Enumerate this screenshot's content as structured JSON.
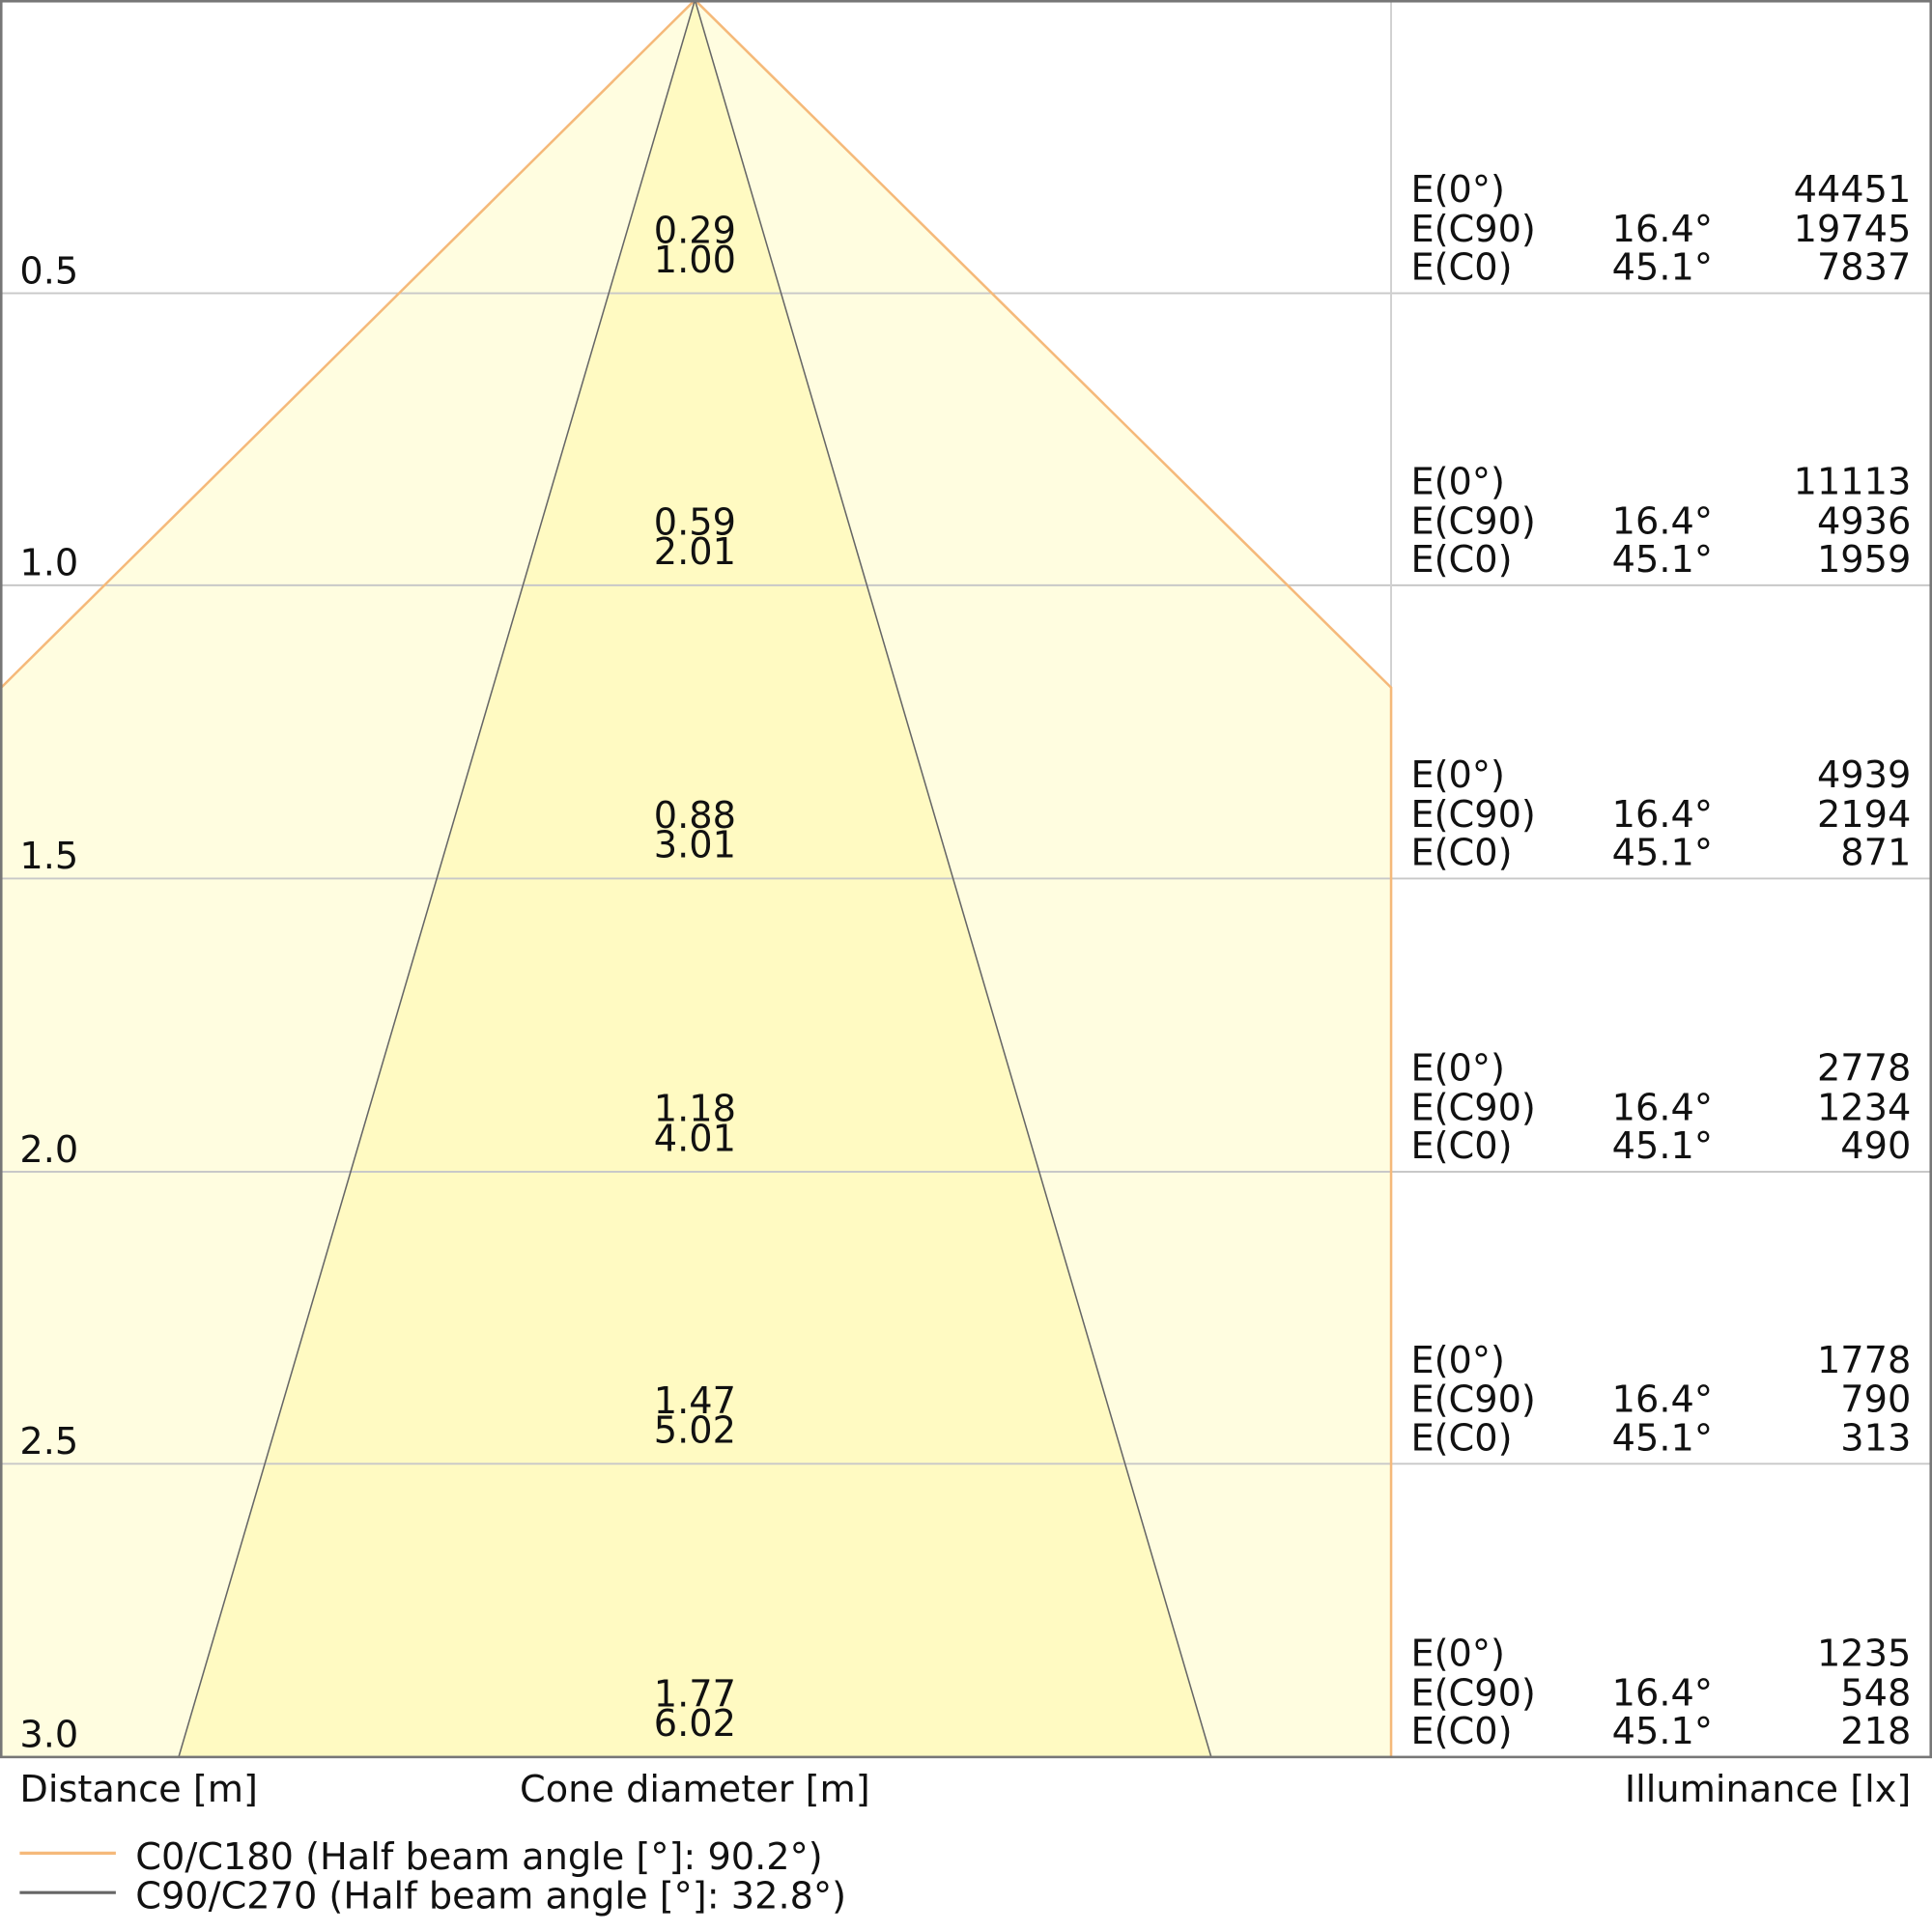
{
  "chart_data": {
    "type": "cone-diagram",
    "distances": [
      "0.5",
      "1.0",
      "1.5",
      "2.0",
      "2.5",
      "3.0"
    ],
    "cone_diameter_c90": [
      "0.29",
      "0.59",
      "0.88",
      "1.18",
      "1.47",
      "1.77"
    ],
    "cone_diameter_c0": [
      "1.00",
      "2.01",
      "3.01",
      "4.01",
      "5.02",
      "6.02"
    ],
    "illuminance": [
      {
        "e0": "44451",
        "ec90": "19745",
        "ec0": "7837"
      },
      {
        "e0": "11113",
        "ec90": "4936",
        "ec0": "1959"
      },
      {
        "e0": "4939",
        "ec90": "2194",
        "ec0": "871"
      },
      {
        "e0": "2778",
        "ec90": "1234",
        "ec0": "490"
      },
      {
        "e0": "1778",
        "ec90": "790",
        "ec0": "313"
      },
      {
        "e0": "1235",
        "ec90": "548",
        "ec0": "218"
      }
    ],
    "row_labels": {
      "e0": "E(0°)",
      "ec90": "E(C90)",
      "ec0": "E(C0)"
    },
    "angle_c90": "16.4°",
    "angle_c0": "45.1°",
    "xlabel_distance": "Distance [m]",
    "xlabel_cone": "Cone diameter [m]",
    "xlabel_illuminance": "Illuminance [lx]",
    "half_beam_angle_c0": 90.2,
    "half_beam_angle_c90": 32.8,
    "legend": [
      {
        "label": "C0/C180 (Half beam angle [°]: 90.2°)",
        "color": "#f5b97a"
      },
      {
        "label": "C90/C270 (Half beam angle [°]: 32.8°)",
        "color": "#666666"
      }
    ],
    "colors": {
      "outer_fill": "#fffde0",
      "inner_fill": "#fffac2",
      "grid": "#c8c8c8"
    }
  }
}
